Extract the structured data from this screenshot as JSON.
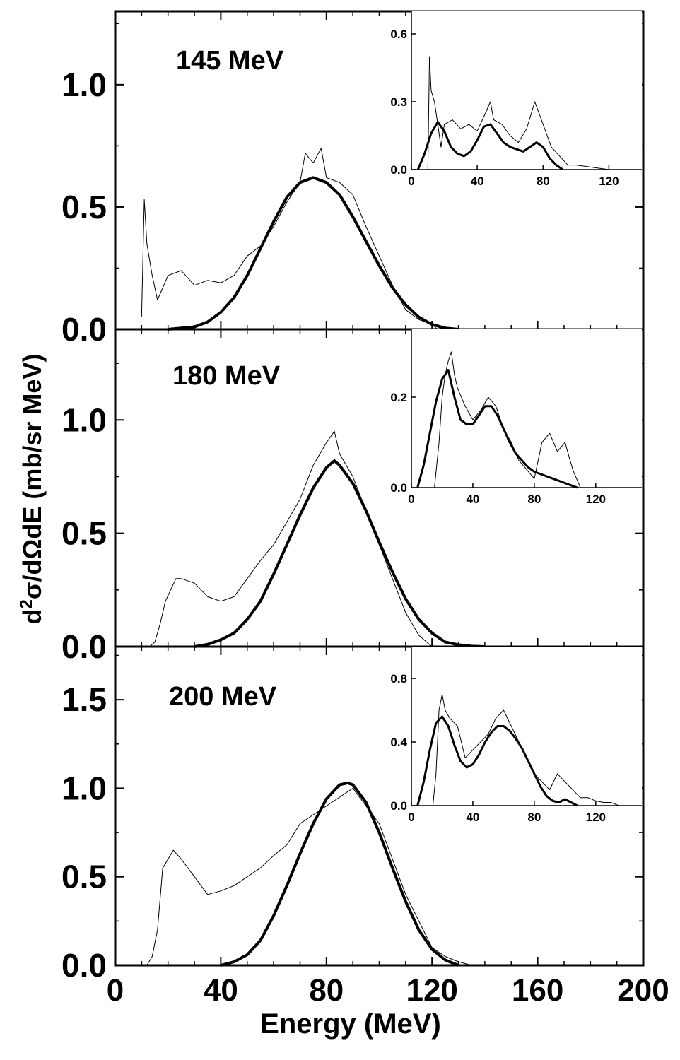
{
  "figure": {
    "xlabel": "Energy (MeV)",
    "ylabel": "d2σ/dΩdE (mb/sr MeV)",
    "ylabel_parts": {
      "d": "d",
      "sup": "2",
      "rest": "σ/dΩdE (mb/sr MeV)"
    }
  },
  "chart_data": [
    {
      "type": "line",
      "panel": "top",
      "energy_label": "145 MeV",
      "xlim": [
        0,
        200
      ],
      "ylim": [
        0,
        1.3
      ],
      "xticks": [
        0,
        40,
        80,
        120,
        160,
        200
      ],
      "xtick_labels": [
        "",
        "",
        "",
        "",
        "",
        ""
      ],
      "yticks": [
        0.0,
        0.5,
        1.0
      ],
      "ytick_labels": [
        "0.0",
        "0.5",
        "1.0"
      ],
      "series": [
        {
          "style": "data",
          "x": [
            10,
            11,
            12,
            14,
            16,
            20,
            25,
            30,
            35,
            40,
            45,
            50,
            55,
            60,
            65,
            70,
            72,
            75,
            78,
            80,
            85,
            90,
            95,
            100,
            105,
            110,
            115,
            120,
            122
          ],
          "y": [
            0.05,
            0.53,
            0.35,
            0.22,
            0.12,
            0.22,
            0.24,
            0.18,
            0.2,
            0.19,
            0.22,
            0.3,
            0.34,
            0.42,
            0.52,
            0.6,
            0.72,
            0.68,
            0.74,
            0.62,
            0.6,
            0.55,
            0.42,
            0.3,
            0.18,
            0.08,
            0.04,
            0.02,
            0.0
          ]
        },
        {
          "style": "fit",
          "x": [
            20,
            30,
            35,
            40,
            45,
            50,
            55,
            60,
            65,
            70,
            75,
            80,
            85,
            90,
            95,
            100,
            105,
            110,
            115,
            120,
            125,
            130
          ],
          "y": [
            0.0,
            0.01,
            0.03,
            0.07,
            0.13,
            0.22,
            0.33,
            0.44,
            0.54,
            0.6,
            0.62,
            0.6,
            0.55,
            0.46,
            0.36,
            0.26,
            0.17,
            0.1,
            0.05,
            0.02,
            0.005,
            0.0
          ]
        }
      ],
      "inset": {
        "xlim": [
          0,
          140
        ],
        "ylim": [
          0,
          0.7
        ],
        "xticks": [
          0,
          40,
          80,
          120
        ],
        "xtick_labels": [
          "0",
          "40",
          "80",
          "120"
        ],
        "yticks": [
          0.0,
          0.3,
          0.6
        ],
        "ytick_labels": [
          "0.0",
          "0.3",
          "0.6"
        ],
        "series": [
          {
            "style": "data",
            "x": [
              10,
              11,
              12,
              14,
              16,
              18,
              20,
              25,
              30,
              35,
              40,
              45,
              48,
              50,
              55,
              60,
              65,
              70,
              75,
              80,
              85,
              90,
              95,
              100,
              110,
              120,
              130
            ],
            "y": [
              0.0,
              0.5,
              0.35,
              0.3,
              0.2,
              0.1,
              0.2,
              0.22,
              0.18,
              0.2,
              0.17,
              0.25,
              0.3,
              0.22,
              0.2,
              0.15,
              0.12,
              0.18,
              0.3,
              0.2,
              0.1,
              0.06,
              0.02,
              0.02,
              0.01,
              0.0,
              0.0
            ]
          },
          {
            "style": "fit",
            "x": [
              4,
              8,
              12,
              16,
              20,
              24,
              28,
              32,
              36,
              40,
              44,
              48,
              52,
              56,
              60,
              64,
              68,
              72,
              76,
              80,
              84,
              88,
              92
            ],
            "y": [
              0.0,
              0.07,
              0.16,
              0.21,
              0.17,
              0.1,
              0.07,
              0.06,
              0.08,
              0.13,
              0.19,
              0.2,
              0.16,
              0.12,
              0.1,
              0.09,
              0.08,
              0.1,
              0.12,
              0.1,
              0.05,
              0.02,
              0.0
            ]
          }
        ]
      }
    },
    {
      "type": "line",
      "panel": "middle",
      "energy_label": "180 MeV",
      "xlim": [
        0,
        200
      ],
      "ylim": [
        0,
        1.4
      ],
      "xticks": [
        0,
        40,
        80,
        120,
        160,
        200
      ],
      "xtick_labels": [
        "",
        "",
        "",
        "",
        "",
        ""
      ],
      "yticks": [
        0.0,
        0.5,
        1.0
      ],
      "ytick_labels": [
        "0.0",
        "0.5",
        "1.0"
      ],
      "series": [
        {
          "style": "data",
          "x": [
            13,
            15,
            17,
            19,
            21,
            23,
            25,
            30,
            35,
            40,
            45,
            50,
            55,
            60,
            65,
            70,
            75,
            80,
            83,
            85,
            90,
            95,
            100,
            105,
            110,
            115,
            120
          ],
          "y": [
            0.0,
            0.02,
            0.1,
            0.2,
            0.25,
            0.3,
            0.3,
            0.28,
            0.22,
            0.2,
            0.22,
            0.3,
            0.38,
            0.45,
            0.55,
            0.65,
            0.8,
            0.9,
            0.95,
            0.85,
            0.75,
            0.6,
            0.45,
            0.3,
            0.15,
            0.05,
            0.0
          ]
        },
        {
          "style": "fit",
          "x": [
            30,
            35,
            40,
            45,
            50,
            55,
            60,
            65,
            70,
            75,
            80,
            83,
            85,
            90,
            95,
            100,
            105,
            110,
            115,
            120,
            125,
            130,
            135,
            140
          ],
          "y": [
            0.0,
            0.01,
            0.03,
            0.06,
            0.12,
            0.2,
            0.32,
            0.45,
            0.58,
            0.7,
            0.79,
            0.82,
            0.8,
            0.72,
            0.6,
            0.46,
            0.33,
            0.21,
            0.12,
            0.06,
            0.02,
            0.008,
            0.002,
            0.0
          ]
        }
      ],
      "inset": {
        "xlim": [
          0,
          150
        ],
        "ylim": [
          0,
          0.35
        ],
        "xticks": [
          0,
          40,
          80,
          120
        ],
        "xtick_labels": [
          "0",
          "40",
          "80",
          "120"
        ],
        "yticks": [
          0.0,
          0.2
        ],
        "ytick_labels": [
          "0.0",
          "0.2"
        ],
        "series": [
          {
            "style": "data",
            "x": [
              15,
              18,
              20,
              22,
              24,
              26,
              28,
              30,
              35,
              40,
              45,
              50,
              55,
              60,
              65,
              70,
              75,
              80,
              85,
              90,
              95,
              100,
              105,
              110
            ],
            "y": [
              0.0,
              0.1,
              0.2,
              0.25,
              0.28,
              0.3,
              0.25,
              0.22,
              0.18,
              0.15,
              0.17,
              0.2,
              0.18,
              0.13,
              0.1,
              0.06,
              0.04,
              0.02,
              0.1,
              0.12,
              0.08,
              0.1,
              0.04,
              0.0
            ]
          },
          {
            "style": "fit",
            "x": [
              4,
              8,
              12,
              16,
              20,
              24,
              28,
              32,
              36,
              40,
              44,
              48,
              52,
              56,
              60,
              64,
              68,
              72,
              76,
              80,
              84,
              88,
              92,
              96,
              100,
              104,
              108
            ],
            "y": [
              0.0,
              0.05,
              0.12,
              0.19,
              0.24,
              0.26,
              0.2,
              0.15,
              0.14,
              0.14,
              0.16,
              0.18,
              0.18,
              0.16,
              0.13,
              0.1,
              0.075,
              0.06,
              0.045,
              0.035,
              0.03,
              0.025,
              0.02,
              0.015,
              0.01,
              0.005,
              0.0
            ]
          }
        ]
      }
    },
    {
      "type": "line",
      "panel": "bottom",
      "energy_label": "200 MeV",
      "xlim": [
        0,
        200
      ],
      "ylim": [
        0,
        1.8
      ],
      "xticks": [
        0,
        40,
        80,
        120,
        160,
        200
      ],
      "xtick_labels": [
        "0",
        "40",
        "80",
        "120",
        "160",
        "200"
      ],
      "yticks": [
        0.0,
        0.5,
        1.0,
        1.5
      ],
      "ytick_labels": [
        "0.0",
        "0.5",
        "1.0",
        "1.5"
      ],
      "series": [
        {
          "style": "data",
          "x": [
            12,
            14,
            16,
            18,
            20,
            22,
            25,
            30,
            35,
            40,
            45,
            50,
            55,
            60,
            65,
            70,
            75,
            80,
            85,
            90,
            95,
            100,
            105,
            110,
            115,
            120,
            125,
            130,
            135
          ],
          "y": [
            0.0,
            0.05,
            0.2,
            0.55,
            0.6,
            0.65,
            0.6,
            0.5,
            0.4,
            0.42,
            0.45,
            0.5,
            0.55,
            0.62,
            0.68,
            0.8,
            0.85,
            0.9,
            0.95,
            1.0,
            0.9,
            0.8,
            0.6,
            0.4,
            0.25,
            0.1,
            0.05,
            0.02,
            0.0
          ]
        },
        {
          "style": "fit",
          "x": [
            40,
            45,
            50,
            55,
            60,
            65,
            70,
            75,
            80,
            85,
            88,
            90,
            95,
            100,
            105,
            110,
            115,
            120,
            125,
            130
          ],
          "y": [
            0.0,
            0.02,
            0.06,
            0.14,
            0.28,
            0.45,
            0.63,
            0.8,
            0.94,
            1.02,
            1.03,
            1.02,
            0.92,
            0.75,
            0.55,
            0.36,
            0.2,
            0.09,
            0.03,
            0.0
          ]
        }
      ],
      "inset": {
        "xlim": [
          0,
          150
        ],
        "ylim": [
          0,
          1.0
        ],
        "xticks": [
          0,
          40,
          80,
          120
        ],
        "xtick_labels": [
          "0",
          "40",
          "80",
          "120"
        ],
        "yticks": [
          0.0,
          0.4,
          0.8
        ],
        "ytick_labels": [
          "0.0",
          "0.4",
          "0.8"
        ],
        "series": [
          {
            "style": "data",
            "x": [
              14,
              16,
              18,
              20,
              22,
              25,
              30,
              35,
              40,
              45,
              50,
              55,
              60,
              65,
              70,
              75,
              80,
              85,
              90,
              95,
              100,
              105,
              110,
              115,
              120,
              125,
              130,
              135
            ],
            "y": [
              0.0,
              0.2,
              0.6,
              0.7,
              0.6,
              0.55,
              0.5,
              0.3,
              0.35,
              0.4,
              0.45,
              0.55,
              0.6,
              0.5,
              0.4,
              0.3,
              0.2,
              0.15,
              0.1,
              0.2,
              0.15,
              0.1,
              0.05,
              0.05,
              0.03,
              0.02,
              0.02,
              0.0
            ]
          },
          {
            "style": "fit",
            "x": [
              4,
              8,
              12,
              16,
              20,
              24,
              28,
              32,
              36,
              40,
              44,
              48,
              52,
              56,
              60,
              64,
              68,
              72,
              76,
              80,
              84,
              88,
              92,
              96,
              100,
              104,
              108
            ],
            "y": [
              0.0,
              0.15,
              0.35,
              0.52,
              0.56,
              0.5,
              0.38,
              0.28,
              0.24,
              0.26,
              0.32,
              0.4,
              0.46,
              0.5,
              0.5,
              0.47,
              0.42,
              0.36,
              0.28,
              0.2,
              0.12,
              0.06,
              0.03,
              0.02,
              0.04,
              0.02,
              0.0
            ]
          }
        ]
      }
    }
  ]
}
